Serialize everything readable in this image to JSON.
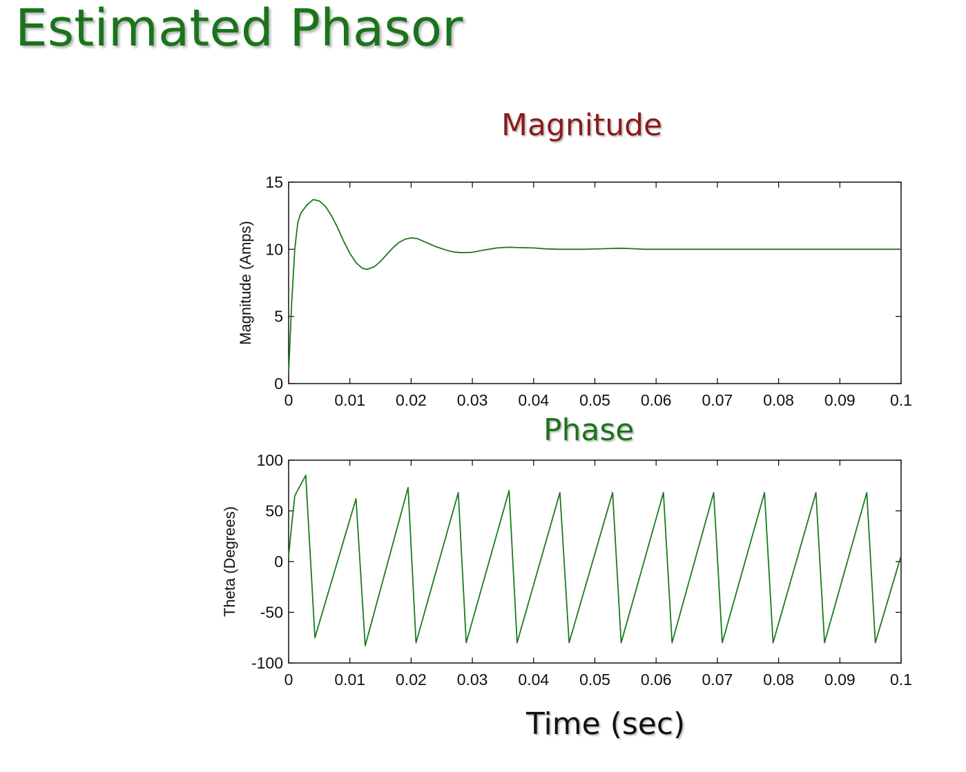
{
  "slide": {
    "title": "Estimated Phasor",
    "magnitude_heading": "Magnitude",
    "phase_heading": "Phase",
    "time_label": "Time (sec)"
  },
  "colors": {
    "title": "#1b731b",
    "magnitude_heading": "#8b1a1a",
    "trace": "#1a7a1a"
  },
  "chart_data": [
    {
      "type": "line",
      "title": "",
      "xlabel": "",
      "ylabel": "Magnitude (Amps)",
      "xlim": [
        0,
        0.1
      ],
      "ylim": [
        0,
        15
      ],
      "xticks": [
        0,
        0.01,
        0.02,
        0.03,
        0.04,
        0.05,
        0.06,
        0.07,
        0.08,
        0.09,
        0.1
      ],
      "xtick_labels": [
        "0",
        "0.01",
        "0.02",
        "0.03",
        "0.04",
        "0.05",
        "0.06",
        "0.07",
        "0.08",
        "0.09",
        "0.1"
      ],
      "yticks": [
        0,
        5,
        10,
        15
      ],
      "ytick_labels": [
        "0",
        "5",
        "10",
        "15"
      ],
      "grid": false,
      "series": [
        {
          "x": [
            0,
            0.0005,
            0.001,
            0.0015,
            0.002,
            0.003,
            0.004,
            0.005,
            0.006,
            0.007,
            0.008,
            0.009,
            0.01,
            0.011,
            0.012,
            0.0128,
            0.014,
            0.015,
            0.016,
            0.017,
            0.018,
            0.019,
            0.02,
            0.021,
            0.022,
            0.023,
            0.024,
            0.025,
            0.026,
            0.027,
            0.028,
            0.029,
            0.03,
            0.032,
            0.034,
            0.036,
            0.038,
            0.04,
            0.042,
            0.044,
            0.046,
            0.048,
            0.05,
            0.052,
            0.054,
            0.056,
            0.058,
            0.06,
            0.065,
            0.07,
            0.075,
            0.08,
            0.085,
            0.09,
            0.095,
            0.1
          ],
          "y": [
            0.8,
            6.0,
            10.0,
            12.0,
            12.7,
            13.3,
            13.7,
            13.6,
            13.2,
            12.5,
            11.6,
            10.6,
            9.7,
            9.0,
            8.6,
            8.5,
            8.7,
            9.1,
            9.6,
            10.1,
            10.5,
            10.75,
            10.85,
            10.8,
            10.6,
            10.4,
            10.2,
            10.05,
            9.9,
            9.8,
            9.75,
            9.75,
            9.78,
            9.95,
            10.1,
            10.15,
            10.12,
            10.1,
            10.03,
            10.0,
            10.0,
            10.0,
            10.02,
            10.05,
            10.08,
            10.05,
            10.0,
            10.0,
            10.0,
            10.0,
            10.0,
            10.0,
            10.0,
            10.0,
            10.0,
            10.0
          ]
        }
      ]
    },
    {
      "type": "line",
      "title": "",
      "xlabel": "",
      "ylabel": "Theta (Degrees)",
      "xlim": [
        0,
        0.1
      ],
      "ylim": [
        -100,
        100
      ],
      "xticks": [
        0,
        0.01,
        0.02,
        0.03,
        0.04,
        0.05,
        0.06,
        0.07,
        0.08,
        0.09,
        0.1
      ],
      "xtick_labels": [
        "0",
        "0.01",
        "0.02",
        "0.03",
        "0.04",
        "0.05",
        "0.06",
        "0.07",
        "0.08",
        "0.09",
        "0.1"
      ],
      "yticks": [
        -100,
        -50,
        0,
        50,
        100
      ],
      "ytick_labels": [
        "-100",
        "-50",
        "0",
        "50",
        "100"
      ],
      "grid": false,
      "series": [
        {
          "x": [
            0,
            0.0004,
            0.001,
            0.0028,
            0.0043,
            0.011,
            0.0125,
            0.0195,
            0.0208,
            0.0277,
            0.029,
            0.036,
            0.0373,
            0.0443,
            0.0458,
            0.0529,
            0.0543,
            0.0612,
            0.0626,
            0.0694,
            0.0708,
            0.0777,
            0.0791,
            0.0861,
            0.0875,
            0.0944,
            0.0958,
            0.1
          ],
          "y": [
            5,
            30,
            65,
            85,
            -75,
            62,
            -83,
            73,
            -80,
            68,
            -80,
            70,
            -80,
            68,
            -80,
            68,
            -80,
            68,
            -80,
            68,
            -80,
            68,
            -80,
            68,
            -80,
            68,
            -80,
            6
          ]
        }
      ]
    }
  ]
}
